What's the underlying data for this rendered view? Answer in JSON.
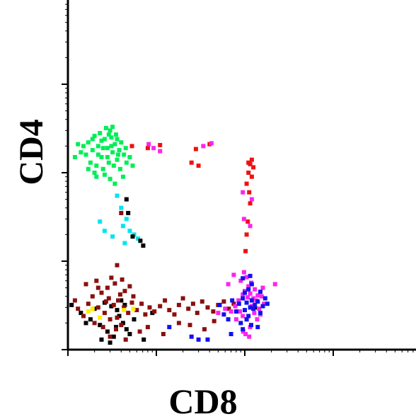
{
  "chart_data": {
    "type": "scatter",
    "title": "",
    "xlabel": "CD8",
    "ylabel": "CD4",
    "xscale": "log",
    "yscale": "log",
    "xlim": [
      1,
      10000
    ],
    "ylim": [
      1,
      10000
    ],
    "grid": false,
    "legend": "none",
    "tick_labels": "none",
    "colors": {
      "green": "#00ee55",
      "cyan": "#00e5ee",
      "black": "#000000",
      "maroon": "#8b0f0f",
      "yellow": "#ffee00",
      "red": "#ee1111",
      "magenta": "#ff22ee",
      "blue": "#1111ee"
    },
    "series": [
      {
        "color": "green",
        "points": [
          [
            1.6,
            160
          ],
          [
            1.7,
            220
          ],
          [
            1.9,
            180
          ],
          [
            2.0,
            260
          ],
          [
            2.2,
            200
          ],
          [
            2.4,
            150
          ],
          [
            2.6,
            240
          ],
          [
            2.8,
            190
          ],
          [
            3.0,
            300
          ],
          [
            3.2,
            170
          ],
          [
            3.4,
            210
          ],
          [
            3.6,
            140
          ],
          [
            1.8,
            130
          ],
          [
            2.1,
            120
          ],
          [
            2.5,
            110
          ],
          [
            2.9,
            130
          ],
          [
            3.3,
            120
          ],
          [
            3.8,
            180
          ],
          [
            4.0,
            220
          ],
          [
            4.3,
            160
          ],
          [
            4.6,
            130
          ],
          [
            2.3,
            280
          ],
          [
            2.7,
            320
          ],
          [
            3.1,
            250
          ],
          [
            3.5,
            270
          ],
          [
            1.5,
            200
          ],
          [
            1.4,
            170
          ],
          [
            2.0,
            100
          ],
          [
            2.6,
            95
          ],
          [
            3.0,
            85
          ],
          [
            3.4,
            75
          ],
          [
            3.9,
            110
          ],
          [
            4.2,
            90
          ],
          [
            2.2,
            160
          ],
          [
            2.8,
            150
          ],
          [
            3.1,
            200
          ],
          [
            2.4,
            230
          ],
          [
            1.9,
            240
          ],
          [
            3.7,
            160
          ],
          [
            4.5,
            190
          ],
          [
            5.0,
            150
          ],
          [
            5.4,
            120
          ],
          [
            1.7,
            110
          ],
          [
            2.1,
            90
          ],
          [
            1.3,
            210
          ],
          [
            1.2,
            150
          ],
          [
            3.2,
            330
          ],
          [
            2.9,
            270
          ],
          [
            2.5,
            190
          ],
          [
            3.6,
            240
          ]
        ]
      },
      {
        "color": "cyan",
        "points": [
          [
            3.6,
            55
          ],
          [
            4.0,
            40
          ],
          [
            4.6,
            30
          ],
          [
            4.2,
            25
          ],
          [
            5.0,
            22
          ],
          [
            5.6,
            20
          ],
          [
            6.2,
            18
          ],
          [
            2.3,
            28
          ],
          [
            2.6,
            22
          ],
          [
            3.2,
            19
          ],
          [
            4.4,
            16
          ]
        ]
      },
      {
        "color": "black",
        "points": [
          [
            4.6,
            50
          ],
          [
            4.8,
            35
          ],
          [
            5.4,
            19
          ],
          [
            6.6,
            17
          ],
          [
            7.1,
            15
          ],
          [
            1.1,
            3.2
          ],
          [
            1.4,
            2.6
          ],
          [
            1.8,
            2.2
          ],
          [
            2.3,
            1.9
          ],
          [
            2.8,
            1.6
          ],
          [
            3.3,
            1.4
          ],
          [
            3.8,
            2.4
          ],
          [
            4.2,
            2.0
          ],
          [
            4.6,
            1.7
          ],
          [
            5.0,
            1.5
          ],
          [
            2.0,
            2.9
          ],
          [
            2.6,
            3.4
          ],
          [
            3.1,
            3.1
          ],
          [
            3.6,
            2.8
          ],
          [
            4.4,
            3.2
          ],
          [
            1.6,
            2.0
          ],
          [
            2.4,
            1.3
          ],
          [
            3.0,
            1.2
          ],
          [
            3.5,
            1.8
          ],
          [
            4.0,
            3.6
          ],
          [
            5.6,
            2.2
          ],
          [
            7.2,
            1.3
          ],
          [
            9.0,
            2.6
          ],
          [
            130,
            3.0
          ]
        ]
      },
      {
        "color": "maroon",
        "points": [
          [
            1.2,
            3.6
          ],
          [
            1.5,
            2.4
          ],
          [
            1.9,
            4.0
          ],
          [
            2.2,
            3.0
          ],
          [
            2.6,
            2.6
          ],
          [
            2.9,
            3.8
          ],
          [
            3.3,
            3.2
          ],
          [
            3.6,
            2.3
          ],
          [
            3.9,
            4.2
          ],
          [
            4.3,
            3.0
          ],
          [
            4.8,
            2.6
          ],
          [
            5.3,
            3.4
          ],
          [
            6.0,
            2.8
          ],
          [
            6.8,
            3.3
          ],
          [
            7.5,
            2.5
          ],
          [
            8.4,
            3.0
          ],
          [
            9.5,
            2.7
          ],
          [
            11,
            3.1
          ],
          [
            12.5,
            3.6
          ],
          [
            14,
            2.8
          ],
          [
            16,
            2.5
          ],
          [
            18,
            3.2
          ],
          [
            20,
            3.8
          ],
          [
            23,
            2.9
          ],
          [
            26,
            3.3
          ],
          [
            29,
            2.6
          ],
          [
            33,
            3.5
          ],
          [
            38,
            3.0
          ],
          [
            44,
            2.7
          ],
          [
            50,
            3.2
          ],
          [
            58,
            3.5
          ],
          [
            66,
            2.9
          ],
          [
            75,
            3.3
          ],
          [
            2.0,
            2.0
          ],
          [
            2.5,
            1.8
          ],
          [
            3.0,
            2.2
          ],
          [
            3.5,
            1.7
          ],
          [
            4.0,
            1.9
          ],
          [
            1.3,
            2.9
          ],
          [
            1.7,
            3.3
          ],
          [
            2.4,
            4.4
          ],
          [
            2.8,
            5.0
          ],
          [
            3.4,
            5.6
          ],
          [
            4.1,
            6.2
          ],
          [
            5.0,
            5.2
          ],
          [
            1.6,
            5.5
          ],
          [
            2.1,
            6.0
          ],
          [
            3.0,
            1.4
          ],
          [
            4.5,
            1.3
          ],
          [
            6.5,
            1.6
          ],
          [
            8.0,
            1.8
          ],
          [
            12,
            1.5
          ],
          [
            18,
            2.0
          ],
          [
            24,
            1.9
          ],
          [
            35,
            1.7
          ],
          [
            45,
            2.1
          ],
          [
            4.0,
            35
          ],
          [
            3.6,
            9.0
          ],
          [
            3.1,
            6.5
          ],
          [
            2.2,
            5.0
          ],
          [
            5.5,
            4.0
          ],
          [
            2.7,
            3.5
          ],
          [
            3.7,
            3.6
          ],
          [
            4.4,
            4.6
          ]
        ]
      },
      {
        "color": "yellow",
        "points": [
          [
            1.7,
            2.7
          ],
          [
            1.9,
            2.9
          ],
          [
            2.3,
            2.3
          ],
          [
            4.3,
            2.8
          ],
          [
            5.5,
            2.9
          ]
        ]
      },
      {
        "color": "red",
        "points": [
          [
            5.3,
            200
          ],
          [
            8.0,
            190
          ],
          [
            11,
            205
          ],
          [
            28,
            185
          ],
          [
            40,
            210
          ],
          [
            25,
            130
          ],
          [
            30,
            120
          ],
          [
            110,
            130
          ],
          [
            115,
            125
          ],
          [
            120,
            140
          ],
          [
            125,
            115
          ],
          [
            110,
            100
          ],
          [
            120,
            90
          ],
          [
            105,
            75
          ],
          [
            112,
            60
          ],
          [
            115,
            45
          ],
          [
            108,
            28
          ],
          [
            105,
            20
          ],
          [
            102,
            13
          ]
        ]
      },
      {
        "color": "magenta",
        "points": [
          [
            8.2,
            210
          ],
          [
            9.3,
            190
          ],
          [
            11,
            175
          ],
          [
            34,
            200
          ],
          [
            42,
            215
          ],
          [
            95,
            60
          ],
          [
            120,
            50
          ],
          [
            98,
            30
          ],
          [
            115,
            25
          ],
          [
            75,
            7.0
          ],
          [
            65,
            5.5
          ],
          [
            160,
            5.0
          ],
          [
            220,
            5.5
          ],
          [
            95,
            2.4
          ],
          [
            105,
            2.2
          ],
          [
            115,
            1.8
          ],
          [
            96,
            1.6
          ],
          [
            102,
            1.5
          ],
          [
            112,
            1.4
          ],
          [
            80,
            2.2
          ],
          [
            88,
            2.7
          ],
          [
            120,
            3.1
          ],
          [
            128,
            2.6
          ],
          [
            135,
            3.6
          ],
          [
            145,
            2.9
          ],
          [
            155,
            4.0
          ],
          [
            165,
            3.3
          ],
          [
            150,
            2.5
          ],
          [
            138,
            2.2
          ],
          [
            125,
            3.8
          ],
          [
            95,
            4.2
          ],
          [
            100,
            4.6
          ],
          [
            110,
            5.2
          ],
          [
            118,
            5.7
          ],
          [
            85,
            3.6
          ],
          [
            78,
            3.1
          ],
          [
            70,
            2.7
          ],
          [
            60,
            2.9
          ],
          [
            50,
            2.6
          ],
          [
            90,
            6.0
          ],
          [
            105,
            6.6
          ],
          [
            98,
            7.5
          ],
          [
            108,
            3.9
          ],
          [
            115,
            4.3
          ],
          [
            130,
            4.8
          ],
          [
            140,
            4.1
          ]
        ]
      },
      {
        "color": "blue",
        "points": [
          [
            52,
            3.2
          ],
          [
            58,
            2.5
          ],
          [
            65,
            2.2
          ],
          [
            72,
            3.6
          ],
          [
            80,
            2.7
          ],
          [
            86,
            3.3
          ],
          [
            90,
            2.0
          ],
          [
            95,
            3.8
          ],
          [
            100,
            2.8
          ],
          [
            105,
            3.4
          ],
          [
            110,
            2.4
          ],
          [
            115,
            3.0
          ],
          [
            120,
            3.6
          ],
          [
            125,
            2.9
          ],
          [
            130,
            3.2
          ],
          [
            140,
            3.5
          ],
          [
            150,
            2.6
          ],
          [
            160,
            3.1
          ],
          [
            170,
            3.8
          ],
          [
            100,
            4.4
          ],
          [
            110,
            4.8
          ],
          [
            120,
            5.5
          ],
          [
            95,
            6.4
          ],
          [
            115,
            6.8
          ],
          [
            150,
            4.5
          ],
          [
            180,
            3.3
          ],
          [
            105,
            2.2
          ],
          [
            118,
            1.9
          ],
          [
            95,
            1.7
          ],
          [
            140,
            1.8
          ],
          [
            70,
            1.5
          ],
          [
            38,
            1.3
          ],
          [
            30,
            1.3
          ],
          [
            25,
            1.4
          ],
          [
            14,
            1.8
          ]
        ]
      }
    ]
  }
}
